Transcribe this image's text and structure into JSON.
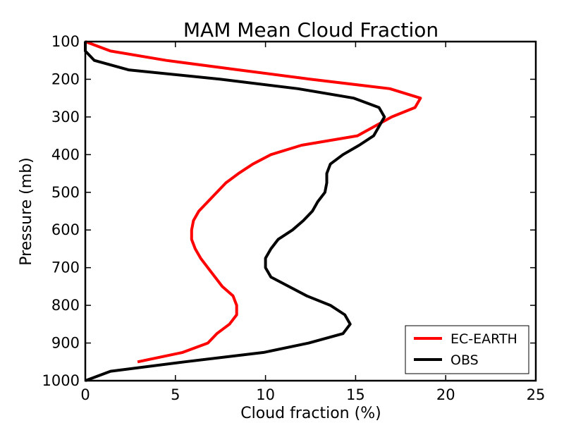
{
  "chart_data": {
    "type": "line",
    "title": "MAM Mean Cloud Fraction",
    "xlabel": "Cloud fraction (%)",
    "ylabel": "Pressure (mb)",
    "xlim": [
      0,
      25
    ],
    "ylim": [
      1000,
      100
    ],
    "y_inverted": true,
    "xticks": [
      0,
      5,
      10,
      15,
      20,
      25
    ],
    "yticks": [
      100,
      200,
      300,
      400,
      500,
      600,
      700,
      800,
      900,
      1000
    ],
    "grid": false,
    "legend": {
      "placement": "bottom-right"
    },
    "series": [
      {
        "name": "EC-EARTH",
        "color": "#ff0000",
        "points": [
          [
            0,
            100
          ],
          [
            1.4,
            125
          ],
          [
            4.5,
            150
          ],
          [
            8.5,
            175
          ],
          [
            12.5,
            200
          ],
          [
            16.9,
            225
          ],
          [
            18.6,
            250
          ],
          [
            18.3,
            275
          ],
          [
            17.0,
            300
          ],
          [
            15.1,
            350
          ],
          [
            12.0,
            375
          ],
          [
            10.3,
            400
          ],
          [
            9.3,
            425
          ],
          [
            8.5,
            450
          ],
          [
            7.8,
            475
          ],
          [
            6.8,
            525
          ],
          [
            6.3,
            550
          ],
          [
            6.0,
            575
          ],
          [
            5.9,
            600
          ],
          [
            5.9,
            625
          ],
          [
            6.1,
            650
          ],
          [
            6.4,
            675
          ],
          [
            6.8,
            700
          ],
          [
            7.6,
            750
          ],
          [
            8.2,
            775
          ],
          [
            8.4,
            800
          ],
          [
            8.4,
            825
          ],
          [
            8.0,
            850
          ],
          [
            7.3,
            875
          ],
          [
            6.8,
            900
          ],
          [
            5.4,
            925
          ],
          [
            2.9,
            950
          ]
        ]
      },
      {
        "name": "OBS",
        "color": "#000000",
        "points": [
          [
            0,
            100
          ],
          [
            0.0,
            125
          ],
          [
            0.5,
            150
          ],
          [
            2.4,
            175
          ],
          [
            7.5,
            200
          ],
          [
            11.8,
            225
          ],
          [
            14.9,
            250
          ],
          [
            16.3,
            275
          ],
          [
            16.6,
            300
          ],
          [
            16.0,
            350
          ],
          [
            15.2,
            375
          ],
          [
            14.3,
            400
          ],
          [
            13.6,
            425
          ],
          [
            13.4,
            450
          ],
          [
            13.4,
            475
          ],
          [
            13.3,
            500
          ],
          [
            12.9,
            525
          ],
          [
            12.6,
            550
          ],
          [
            12.1,
            575
          ],
          [
            11.5,
            600
          ],
          [
            10.7,
            625
          ],
          [
            10.3,
            650
          ],
          [
            10.0,
            675
          ],
          [
            10.0,
            700
          ],
          [
            10.3,
            725
          ],
          [
            11.3,
            750
          ],
          [
            12.3,
            775
          ],
          [
            13.6,
            800
          ],
          [
            14.4,
            825
          ],
          [
            14.7,
            850
          ],
          [
            14.3,
            875
          ],
          [
            12.4,
            900
          ],
          [
            9.9,
            925
          ],
          [
            5.5,
            950
          ],
          [
            1.4,
            975
          ],
          [
            0.0,
            1000
          ]
        ]
      }
    ]
  }
}
